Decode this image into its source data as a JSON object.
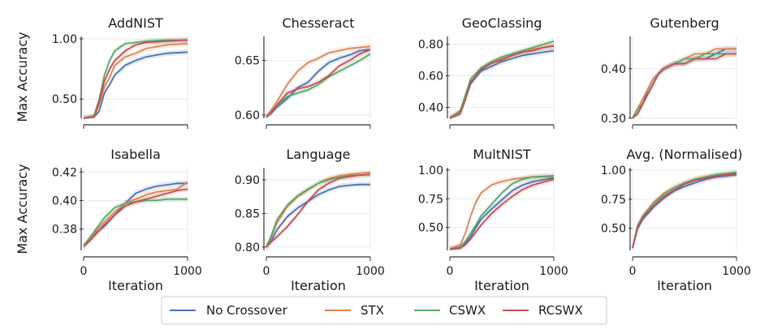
{
  "figure": {
    "ylabel": "Max Accuracy",
    "xlabel": "Iteration"
  },
  "legend": {
    "items": [
      {
        "name": "No Crossover",
        "color": "#4c72b0"
      },
      {
        "name": "STX",
        "color": "#dd8452"
      },
      {
        "name": "CSWX",
        "color": "#55a868"
      },
      {
        "name": "RCSWX",
        "color": "#c44e52"
      }
    ]
  },
  "chart_data": [
    {
      "type": "line",
      "title": "AddNIST",
      "xlim": [
        0,
        1000
      ],
      "ylim": [
        0.34,
        1.02
      ],
      "yticks": [
        0.5,
        1.0
      ],
      "ytick_labels": [
        "0.50",
        "1.00"
      ],
      "xticks": [
        0,
        1000
      ],
      "xtick_labels": [
        "",
        ""
      ],
      "x": [
        0,
        100,
        150,
        200,
        250,
        300,
        400,
        500,
        600,
        800,
        1000
      ],
      "series": [
        {
          "name": "No Crossover",
          "values": [
            0.34,
            0.35,
            0.4,
            0.55,
            0.62,
            0.7,
            0.78,
            0.82,
            0.85,
            0.88,
            0.89
          ]
        },
        {
          "name": "STX",
          "values": [
            0.34,
            0.35,
            0.45,
            0.6,
            0.68,
            0.78,
            0.85,
            0.88,
            0.92,
            0.95,
            0.96
          ]
        },
        {
          "name": "CSWX",
          "values": [
            0.34,
            0.36,
            0.5,
            0.7,
            0.82,
            0.9,
            0.96,
            0.97,
            0.98,
            0.99,
            0.99
          ]
        },
        {
          "name": "RCSWX",
          "values": [
            0.34,
            0.35,
            0.48,
            0.65,
            0.75,
            0.82,
            0.9,
            0.95,
            0.97,
            0.98,
            0.99
          ]
        }
      ]
    },
    {
      "type": "line",
      "title": "Chesseract",
      "xlim": [
        0,
        1000
      ],
      "ylim": [
        0.597,
        0.672
      ],
      "yticks": [
        0.6,
        0.65
      ],
      "ytick_labels": [
        "0.60",
        "0.65"
      ],
      "xticks": [
        0,
        1000
      ],
      "xtick_labels": [
        "",
        ""
      ],
      "x": [
        0,
        50,
        100,
        200,
        300,
        400,
        500,
        600,
        700,
        800,
        900,
        1000
      ],
      "series": [
        {
          "name": "No Crossover",
          "values": [
            0.598,
            0.602,
            0.607,
            0.615,
            0.625,
            0.63,
            0.64,
            0.648,
            0.652,
            0.655,
            0.659,
            0.66
          ]
        },
        {
          "name": "STX",
          "values": [
            0.598,
            0.605,
            0.612,
            0.628,
            0.64,
            0.648,
            0.652,
            0.657,
            0.659,
            0.661,
            0.662,
            0.663
          ]
        },
        {
          "name": "CSWX",
          "values": [
            0.598,
            0.603,
            0.608,
            0.617,
            0.62,
            0.623,
            0.628,
            0.635,
            0.64,
            0.645,
            0.65,
            0.656
          ]
        },
        {
          "name": "RCSWX",
          "values": [
            0.598,
            0.603,
            0.609,
            0.62,
            0.624,
            0.626,
            0.63,
            0.636,
            0.645,
            0.65,
            0.656,
            0.66
          ]
        }
      ]
    },
    {
      "type": "line",
      "title": "GeoClassing",
      "xlim": [
        0,
        1000
      ],
      "ylim": [
        0.33,
        0.85
      ],
      "yticks": [
        0.4,
        0.6,
        0.8
      ],
      "ytick_labels": [
        "0.40",
        "0.60",
        "0.80"
      ],
      "xticks": [
        0,
        1000
      ],
      "xtick_labels": [
        "",
        ""
      ],
      "x": [
        0,
        100,
        150,
        200,
        300,
        400,
        500,
        600,
        700,
        800,
        900,
        1000
      ],
      "series": [
        {
          "name": "No Crossover",
          "values": [
            0.33,
            0.36,
            0.45,
            0.55,
            0.63,
            0.66,
            0.69,
            0.71,
            0.73,
            0.74,
            0.75,
            0.76
          ]
        },
        {
          "name": "STX",
          "values": [
            0.33,
            0.37,
            0.46,
            0.56,
            0.64,
            0.68,
            0.71,
            0.73,
            0.75,
            0.77,
            0.78,
            0.79
          ]
        },
        {
          "name": "CSWX",
          "values": [
            0.33,
            0.38,
            0.48,
            0.58,
            0.65,
            0.69,
            0.72,
            0.74,
            0.76,
            0.78,
            0.8,
            0.82
          ]
        },
        {
          "name": "RCSWX",
          "values": [
            0.33,
            0.36,
            0.45,
            0.56,
            0.64,
            0.68,
            0.7,
            0.73,
            0.75,
            0.76,
            0.78,
            0.79
          ]
        }
      ]
    },
    {
      "type": "line",
      "title": "Gutenberg",
      "xlim": [
        0,
        1000
      ],
      "ylim": [
        0.3,
        0.465
      ],
      "yticks": [
        0.3,
        0.4
      ],
      "ytick_labels": [
        "0.30",
        "0.40"
      ],
      "xticks": [
        0,
        1000
      ],
      "xtick_labels": [
        "",
        ""
      ],
      "x": [
        0,
        50,
        100,
        150,
        200,
        250,
        300,
        400,
        500,
        600,
        700,
        800,
        900,
        1000
      ],
      "series": [
        {
          "name": "No Crossover",
          "values": [
            0.3,
            0.31,
            0.33,
            0.36,
            0.38,
            0.39,
            0.4,
            0.41,
            0.41,
            0.42,
            0.42,
            0.43,
            0.44,
            0.44
          ]
        },
        {
          "name": "STX",
          "values": [
            0.3,
            0.32,
            0.34,
            0.36,
            0.38,
            0.39,
            0.4,
            0.41,
            0.42,
            0.43,
            0.43,
            0.44,
            0.44,
            0.44
          ]
        },
        {
          "name": "CSWX",
          "values": [
            0.3,
            0.32,
            0.33,
            0.35,
            0.37,
            0.39,
            0.4,
            0.41,
            0.42,
            0.42,
            0.43,
            0.43,
            0.43,
            0.43
          ]
        },
        {
          "name": "RCSWX",
          "values": [
            0.3,
            0.31,
            0.33,
            0.35,
            0.37,
            0.39,
            0.4,
            0.41,
            0.41,
            0.42,
            0.42,
            0.42,
            0.43,
            0.43
          ]
        }
      ]
    },
    {
      "type": "line",
      "title": "Isabella",
      "xlim": [
        0,
        1000
      ],
      "ylim": [
        0.365,
        0.423
      ],
      "yticks": [
        0.38,
        0.4,
        0.42
      ],
      "ytick_labels": [
        "0.38",
        "0.40",
        "0.42"
      ],
      "xticks": [
        0,
        1000
      ],
      "xtick_labels": [
        "0",
        "1000"
      ],
      "x": [
        0,
        50,
        100,
        200,
        300,
        400,
        500,
        600,
        700,
        800,
        900,
        1000
      ],
      "series": [
        {
          "name": "No Crossover",
          "values": [
            0.368,
            0.372,
            0.376,
            0.382,
            0.39,
            0.398,
            0.405,
            0.408,
            0.41,
            0.411,
            0.412,
            0.412
          ]
        },
        {
          "name": "STX",
          "values": [
            0.368,
            0.372,
            0.377,
            0.385,
            0.392,
            0.398,
            0.401,
            0.404,
            0.406,
            0.407,
            0.408,
            0.413
          ]
        },
        {
          "name": "CSWX",
          "values": [
            0.368,
            0.373,
            0.378,
            0.388,
            0.395,
            0.398,
            0.399,
            0.4,
            0.4,
            0.401,
            0.401,
            0.401
          ]
        },
        {
          "name": "RCSWX",
          "values": [
            0.368,
            0.371,
            0.375,
            0.383,
            0.39,
            0.396,
            0.399,
            0.401,
            0.403,
            0.405,
            0.407,
            0.408
          ]
        }
      ]
    },
    {
      "type": "line",
      "title": "Language",
      "xlim": [
        0,
        1000
      ],
      "ylim": [
        0.795,
        0.918
      ],
      "yticks": [
        0.8,
        0.85,
        0.9
      ],
      "ytick_labels": [
        "0.80",
        "0.85",
        "0.90"
      ],
      "xticks": [
        0,
        1000
      ],
      "xtick_labels": [
        "0",
        "1000"
      ],
      "x": [
        0,
        50,
        100,
        200,
        300,
        400,
        500,
        600,
        700,
        800,
        900,
        1000
      ],
      "series": [
        {
          "name": "No Crossover",
          "values": [
            0.8,
            0.81,
            0.825,
            0.845,
            0.858,
            0.868,
            0.878,
            0.885,
            0.89,
            0.892,
            0.893,
            0.893
          ]
        },
        {
          "name": "STX",
          "values": [
            0.8,
            0.815,
            0.835,
            0.86,
            0.875,
            0.885,
            0.895,
            0.902,
            0.906,
            0.908,
            0.91,
            0.911
          ]
        },
        {
          "name": "CSWX",
          "values": [
            0.8,
            0.818,
            0.84,
            0.862,
            0.876,
            0.886,
            0.895,
            0.9,
            0.904,
            0.906,
            0.907,
            0.908
          ]
        },
        {
          "name": "RCSWX",
          "values": [
            0.8,
            0.808,
            0.815,
            0.83,
            0.848,
            0.868,
            0.885,
            0.895,
            0.902,
            0.905,
            0.907,
            0.908
          ]
        }
      ]
    },
    {
      "type": "line",
      "title": "MultNIST",
      "xlim": [
        0,
        1000
      ],
      "ylim": [
        0.3,
        1.02
      ],
      "yticks": [
        0.5,
        0.75,
        1.0
      ],
      "ytick_labels": [
        "0.50",
        "0.75",
        "1.00"
      ],
      "xticks": [
        0,
        1000
      ],
      "xtick_labels": [
        "0",
        "1000"
      ],
      "x": [
        0,
        100,
        150,
        200,
        250,
        300,
        400,
        500,
        600,
        700,
        800,
        1000
      ],
      "series": [
        {
          "name": "No Crossover",
          "values": [
            0.31,
            0.33,
            0.36,
            0.42,
            0.5,
            0.57,
            0.66,
            0.74,
            0.82,
            0.87,
            0.9,
            0.93
          ]
        },
        {
          "name": "STX",
          "values": [
            0.31,
            0.35,
            0.45,
            0.6,
            0.72,
            0.8,
            0.87,
            0.9,
            0.92,
            0.93,
            0.94,
            0.94
          ]
        },
        {
          "name": "CSWX",
          "values": [
            0.31,
            0.33,
            0.38,
            0.45,
            0.52,
            0.6,
            0.7,
            0.8,
            0.88,
            0.92,
            0.94,
            0.95
          ]
        },
        {
          "name": "RCSWX",
          "values": [
            0.31,
            0.32,
            0.35,
            0.4,
            0.46,
            0.52,
            0.62,
            0.7,
            0.77,
            0.83,
            0.87,
            0.92
          ]
        }
      ]
    },
    {
      "type": "line",
      "title": "Avg. (Normalised)",
      "xlim": [
        0,
        1000
      ],
      "ylim": [
        0.31,
        1.02
      ],
      "yticks": [
        0.5,
        0.75,
        1.0
      ],
      "ytick_labels": [
        "0.50",
        "0.75",
        "1.00"
      ],
      "xticks": [
        0,
        1000
      ],
      "xtick_labels": [
        "0",
        "1000"
      ],
      "x": [
        0,
        25,
        50,
        100,
        200,
        300,
        400,
        500,
        600,
        700,
        800,
        900,
        1000
      ],
      "series": [
        {
          "name": "No Crossover",
          "values": [
            0.33,
            0.42,
            0.5,
            0.58,
            0.68,
            0.76,
            0.82,
            0.86,
            0.89,
            0.92,
            0.94,
            0.95,
            0.96
          ]
        },
        {
          "name": "STX",
          "values": [
            0.33,
            0.44,
            0.53,
            0.61,
            0.72,
            0.8,
            0.85,
            0.89,
            0.92,
            0.94,
            0.95,
            0.96,
            0.97
          ]
        },
        {
          "name": "CSWX",
          "values": [
            0.33,
            0.43,
            0.52,
            0.6,
            0.71,
            0.79,
            0.85,
            0.89,
            0.92,
            0.94,
            0.96,
            0.97,
            0.98
          ]
        },
        {
          "name": "RCSWX",
          "values": [
            0.33,
            0.42,
            0.51,
            0.59,
            0.69,
            0.77,
            0.83,
            0.88,
            0.91,
            0.93,
            0.95,
            0.96,
            0.97
          ]
        }
      ]
    }
  ]
}
